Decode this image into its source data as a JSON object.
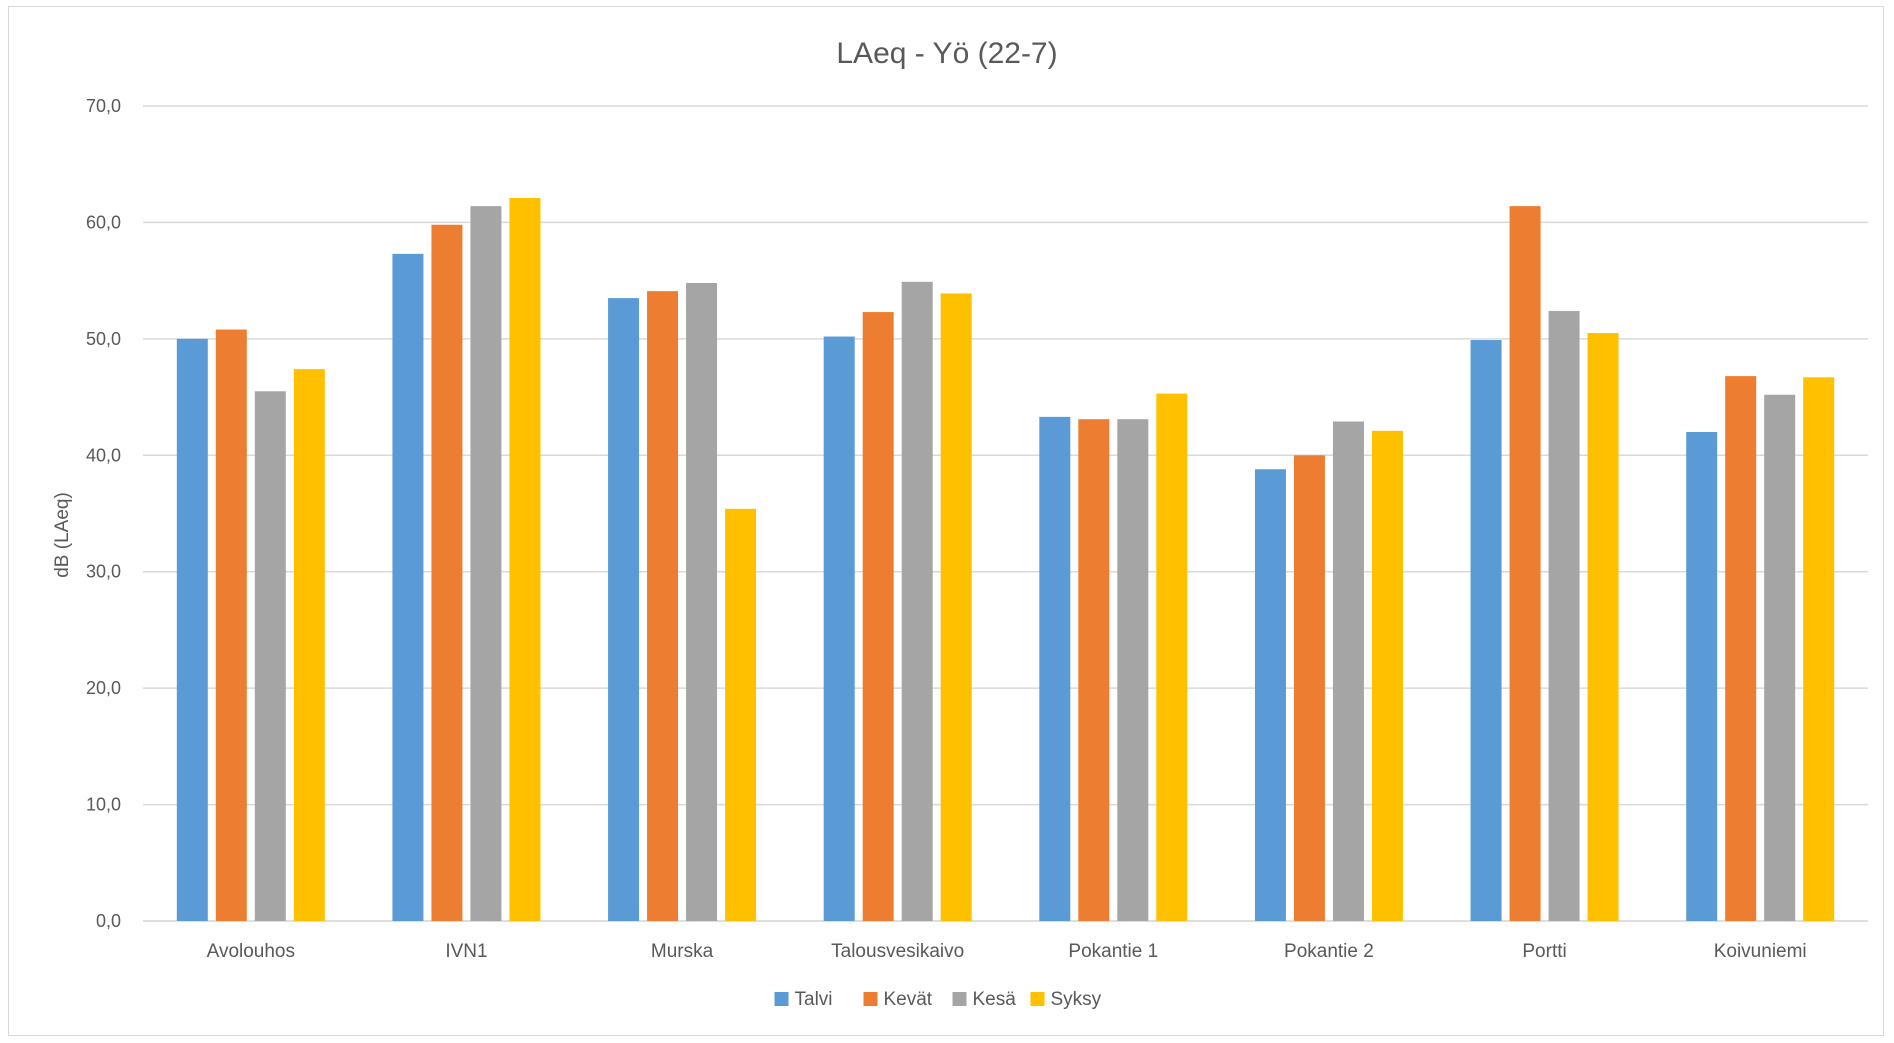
{
  "chart_data": {
    "type": "bar",
    "title": "LAeq - Yö (22-7)",
    "xlabel": "",
    "ylabel": "dB (LAeq)",
    "ylim": [
      0,
      70
    ],
    "yticks": [
      "0,0",
      "10,0",
      "20,0",
      "30,0",
      "40,0",
      "50,0",
      "60,0",
      "70,0"
    ],
    "grid": true,
    "legend_position": "bottom",
    "categories": [
      "Avolouhos",
      "IVN1",
      "Murska",
      "Talousvesikaivo",
      "Pokantie 1",
      "Pokantie 2",
      "Portti",
      "Koivuniemi"
    ],
    "series": [
      {
        "name": "Talvi",
        "color": "#5b9bd5",
        "values": [
          50.0,
          57.3,
          53.5,
          50.2,
          43.3,
          38.8,
          49.9,
          42.0
        ]
      },
      {
        "name": "Kevät",
        "color": "#ed7d31",
        "values": [
          50.8,
          59.8,
          54.1,
          52.3,
          43.1,
          40.0,
          61.4,
          46.8
        ]
      },
      {
        "name": "Kesä",
        "color": "#a5a5a5",
        "values": [
          45.5,
          61.4,
          54.8,
          54.9,
          43.1,
          42.9,
          52.4,
          45.2
        ]
      },
      {
        "name": "Syksy",
        "color": "#ffc000",
        "values": [
          47.4,
          62.1,
          35.4,
          53.9,
          45.3,
          42.1,
          50.5,
          46.7
        ]
      }
    ]
  }
}
